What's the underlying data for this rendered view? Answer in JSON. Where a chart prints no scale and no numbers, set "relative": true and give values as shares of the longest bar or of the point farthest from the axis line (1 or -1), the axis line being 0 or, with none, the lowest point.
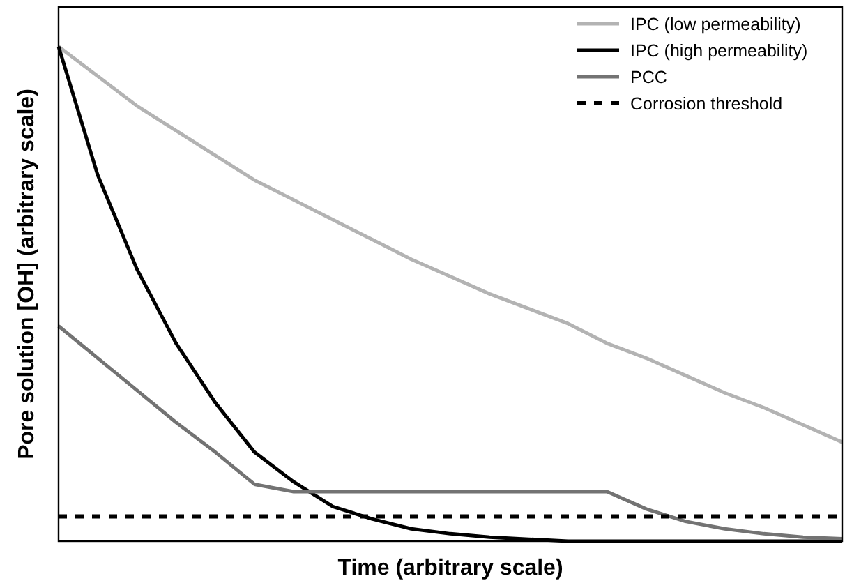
{
  "chart_data": {
    "type": "line",
    "relative": true,
    "xlabel": "Time (arbitrary scale)",
    "ylabel": "Pore solution [OH] (arbitrary scale)",
    "legend": "top right",
    "categories": [
      null,
      null,
      null,
      null,
      null,
      null,
      null,
      null,
      null,
      null,
      null,
      null,
      null,
      null,
      null,
      null,
      null,
      null,
      null,
      null,
      null
    ],
    "series": [
      {
        "name": "IPC (low permeability)",
        "color": "#b3b3b3",
        "values": [
          1,
          0.94,
          0.88,
          0.83,
          0.78,
          0.73,
          0.69,
          0.65,
          0.61,
          0.57,
          0.535,
          0.5,
          0.47,
          0.44,
          0.4,
          0.37,
          0.335,
          0.3,
          0.27,
          0.235,
          0.2
        ]
      },
      {
        "name": "IPC (high permeability)",
        "color": "#000000",
        "values": [
          1,
          0.74,
          0.55,
          0.4,
          0.28,
          0.18,
          0.12,
          0.07,
          0.045,
          0.025,
          0.015,
          0.008,
          0.004,
          0,
          0,
          0,
          0,
          0,
          0,
          0,
          0
        ]
      },
      {
        "name": "PCC",
        "color": "#737373",
        "values": [
          0.435,
          0.37,
          0.305,
          0.24,
          0.18,
          0.115,
          0.1,
          0.1,
          0.1,
          0.1,
          0.1,
          0.1,
          0.1,
          0.1,
          0.1,
          0.065,
          0.04,
          0.025,
          0.015,
          0.008,
          0.005
        ]
      },
      {
        "name": "Corrosion threshold",
        "color": "#000000",
        "line_style": "dashed",
        "values": [
          0.05,
          0.05,
          0.05,
          0.05,
          0.05,
          0.05,
          0.05,
          0.05,
          0.05,
          0.05,
          0.05,
          0.05,
          0.05,
          0.05,
          0.05,
          0.05,
          0.05,
          0.05,
          0.05,
          0.05,
          0.05
        ]
      }
    ]
  }
}
